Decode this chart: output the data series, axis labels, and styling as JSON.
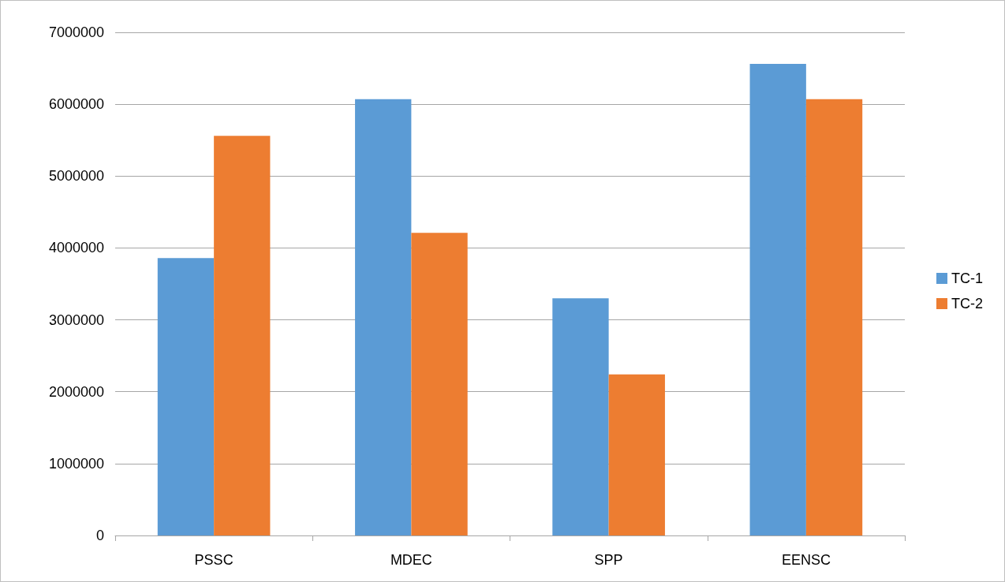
{
  "chart_data": {
    "type": "bar",
    "categories": [
      "PSSC",
      "MDEC",
      "SPP",
      "EENSC"
    ],
    "series": [
      {
        "name": "TC-1",
        "color": "#5b9bd5",
        "values": [
          3860000,
          6070000,
          3300000,
          6560000
        ]
      },
      {
        "name": "TC-2",
        "color": "#ed7d31",
        "values": [
          5560000,
          4210000,
          2240000,
          6070000
        ]
      }
    ],
    "ylim": [
      0,
      7000000
    ],
    "yticks": [
      0,
      1000000,
      2000000,
      3000000,
      4000000,
      5000000,
      6000000,
      7000000
    ],
    "grid": "y",
    "legend": "right"
  }
}
